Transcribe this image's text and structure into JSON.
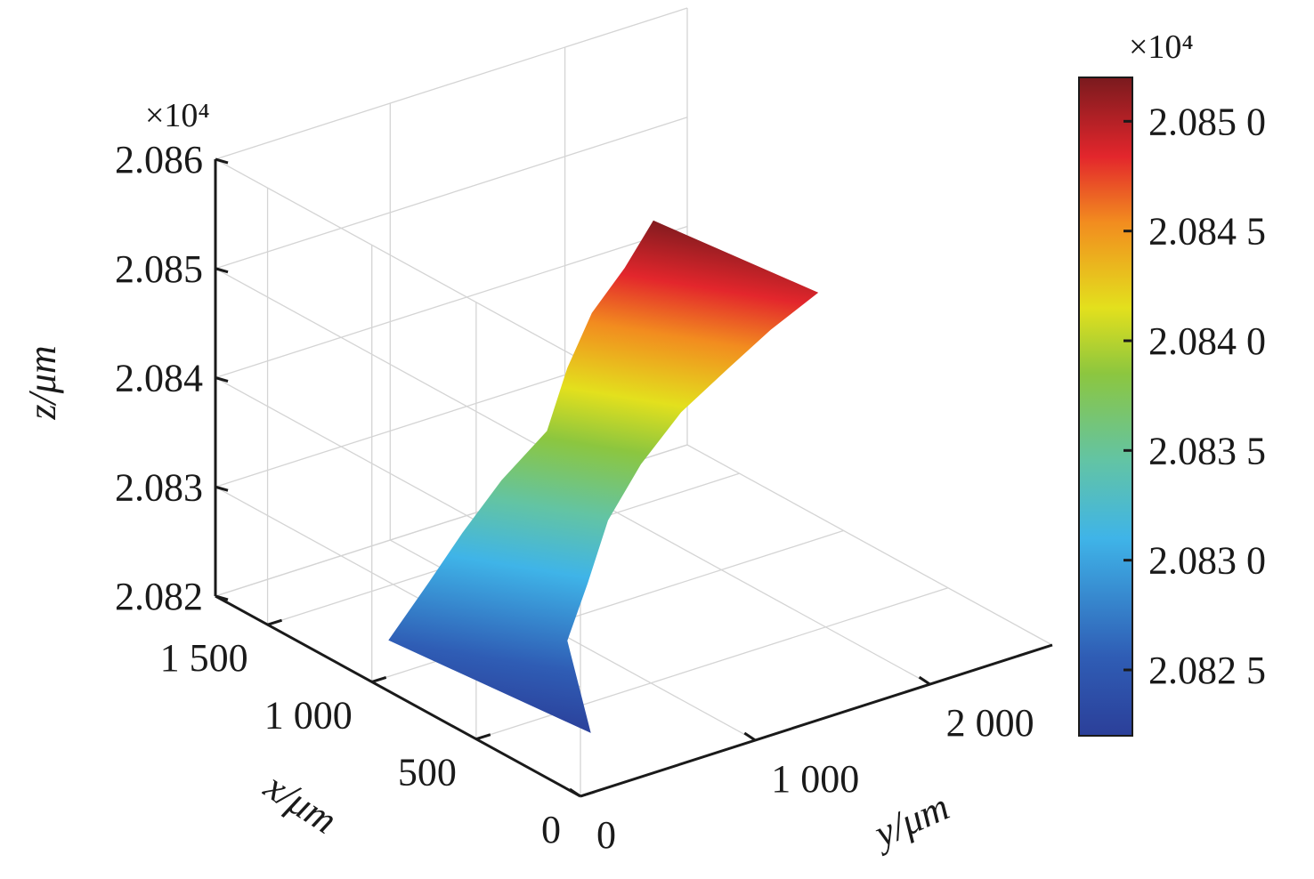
{
  "chart_data": {
    "type": "surface",
    "z_exponent_label": "×10⁴",
    "colorbar_exponent_label": "×10⁴",
    "xlabel": "x/μm",
    "ylabel": "y/μm",
    "zlabel": "z/μm",
    "x_ticks": [
      {
        "value": 0,
        "label": "0"
      },
      {
        "value": 500,
        "label": "500"
      },
      {
        "value": 1000,
        "label": "1 000"
      },
      {
        "value": 1500,
        "label": "1 500"
      }
    ],
    "y_ticks": [
      {
        "value": 0,
        "label": "0"
      },
      {
        "value": 1000,
        "label": "1 000"
      },
      {
        "value": 2000,
        "label": "2 000"
      }
    ],
    "z_ticks": [
      {
        "value": 20820,
        "label": "2.082"
      },
      {
        "value": 20830,
        "label": "2.083"
      },
      {
        "value": 20840,
        "label": "2.084"
      },
      {
        "value": 20850,
        "label": "2.085"
      },
      {
        "value": 20860,
        "label": "2.086"
      }
    ],
    "xlim": [
      0,
      1750
    ],
    "ylim": [
      0,
      2700
    ],
    "zlim": [
      20820,
      20860
    ],
    "colorbar": {
      "range": [
        20822,
        20852
      ],
      "ticks": [
        {
          "value": 20825,
          "label": "2.082 5"
        },
        {
          "value": 20830,
          "label": "2.083 0"
        },
        {
          "value": 20835,
          "label": "2.083 5"
        },
        {
          "value": 20840,
          "label": "2.084 0"
        },
        {
          "value": 20845,
          "label": "2.084 5"
        },
        {
          "value": 20850,
          "label": "2.085 0"
        }
      ],
      "colormap": "jet"
    },
    "surface_profile": [
      {
        "z": 20822.0,
        "x_left": 1080,
        "x_right": 210
      },
      {
        "z": 20826.5,
        "x_left": 1055,
        "x_right": 490
      },
      {
        "z": 20830.0,
        "x_left": 1060,
        "x_right": 560
      },
      {
        "z": 20834.0,
        "x_left": 1040,
        "x_right": 630
      },
      {
        "z": 20838.0,
        "x_left": 990,
        "x_right": 640
      },
      {
        "z": 20842.0,
        "x_left": 1060,
        "x_right": 615
      },
      {
        "z": 20845.5,
        "x_left": 1110,
        "x_right": 560
      },
      {
        "z": 20848.5,
        "x_left": 1120,
        "x_right": 520
      },
      {
        "z": 20851.5,
        "x_left": 1150,
        "x_right": 460
      }
    ],
    "grid": true
  }
}
